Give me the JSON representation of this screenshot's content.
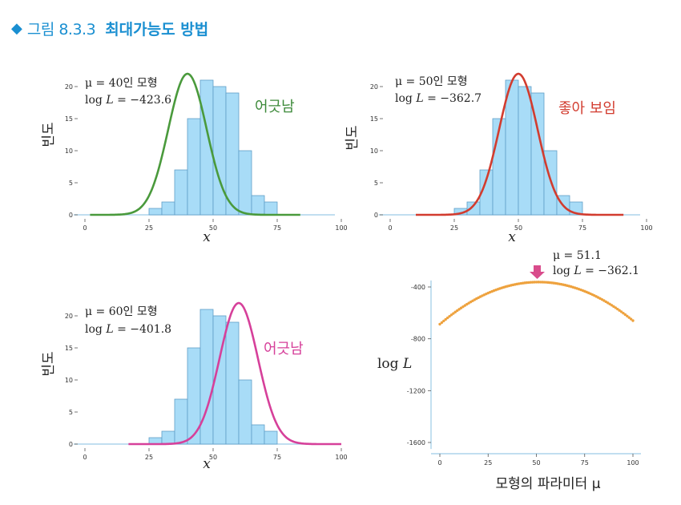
{
  "header": {
    "figure_number": "그림 8.3.3",
    "title": "최대가능도 방법"
  },
  "histogram": {
    "bin_edges": [
      25,
      30,
      35,
      40,
      45,
      50,
      55,
      60,
      65,
      70,
      75
    ],
    "counts": [
      1,
      2,
      7,
      15,
      21,
      20,
      19,
      10,
      3,
      2
    ]
  },
  "chart_data": [
    {
      "type": "bar",
      "name": "mu40",
      "title": "",
      "xlabel": "x",
      "ylabel": "빈도",
      "xlim": [
        0,
        100
      ],
      "ylim": [
        0,
        22
      ],
      "xticks": [
        0,
        25,
        50,
        75,
        100
      ],
      "yticks": [
        0,
        5,
        10,
        15,
        20
      ],
      "fit_mu": 40,
      "fit_color": "#4a9a3c",
      "fit_range": [
        2,
        84
      ],
      "info_line1": "μ = 40인 모형",
      "info_line2_prefix": "log ",
      "info_line2_var": "L",
      "info_line2_value": " = −423.6",
      "verdict": "어긋남",
      "verdict_color": "#3d8a3a"
    },
    {
      "type": "bar",
      "name": "mu50",
      "title": "",
      "xlabel": "x",
      "ylabel": "빈도",
      "xlim": [
        0,
        100
      ],
      "ylim": [
        0,
        22
      ],
      "xticks": [
        0,
        25,
        50,
        75,
        100
      ],
      "yticks": [
        0,
        5,
        10,
        15,
        20
      ],
      "fit_mu": 50,
      "fit_color": "#d23c2f",
      "fit_range": [
        10,
        91
      ],
      "info_line1": "μ = 50인 모형",
      "info_line2_prefix": "log ",
      "info_line2_var": "L",
      "info_line2_value": " = −362.7",
      "verdict": "좋아 보임",
      "verdict_color": "#d23c2f"
    },
    {
      "type": "bar",
      "name": "mu60",
      "title": "",
      "xlabel": "x",
      "ylabel": "빈도",
      "xlim": [
        0,
        100
      ],
      "ylim": [
        0,
        22
      ],
      "xticks": [
        0,
        25,
        50,
        75,
        100
      ],
      "yticks": [
        0,
        5,
        10,
        15,
        20
      ],
      "fit_mu": 60,
      "fit_color": "#d6409a",
      "fit_range": [
        17,
        100
      ],
      "info_line1": "μ = 60인 모형",
      "info_line2_prefix": "log ",
      "info_line2_var": "L",
      "info_line2_value": " = −401.8",
      "verdict": "어긋남",
      "verdict_color": "#d6409a"
    },
    {
      "type": "scatter",
      "name": "loglik",
      "title": "",
      "xlabel": "모형의 파라미터 μ",
      "ylabel": "log L",
      "xlim": [
        0,
        100
      ],
      "ylim": [
        -1650,
        -350
      ],
      "xticks": [
        0,
        25,
        50,
        75,
        100
      ],
      "yticks": [
        -400,
        -800,
        -1200,
        -1600
      ],
      "x_range": [
        0,
        100
      ],
      "x_step": 1,
      "peak_mu": 51.1,
      "peak_loglik": -362.1,
      "curvature": 0.1245,
      "point_color": "#eea23e",
      "arrow_color": "#d94c8c",
      "annotation_line1": "μ = 51.1",
      "annotation_line2_prefix": "log ",
      "annotation_line2_var": "L",
      "annotation_line2_value": " = −362.1"
    }
  ]
}
